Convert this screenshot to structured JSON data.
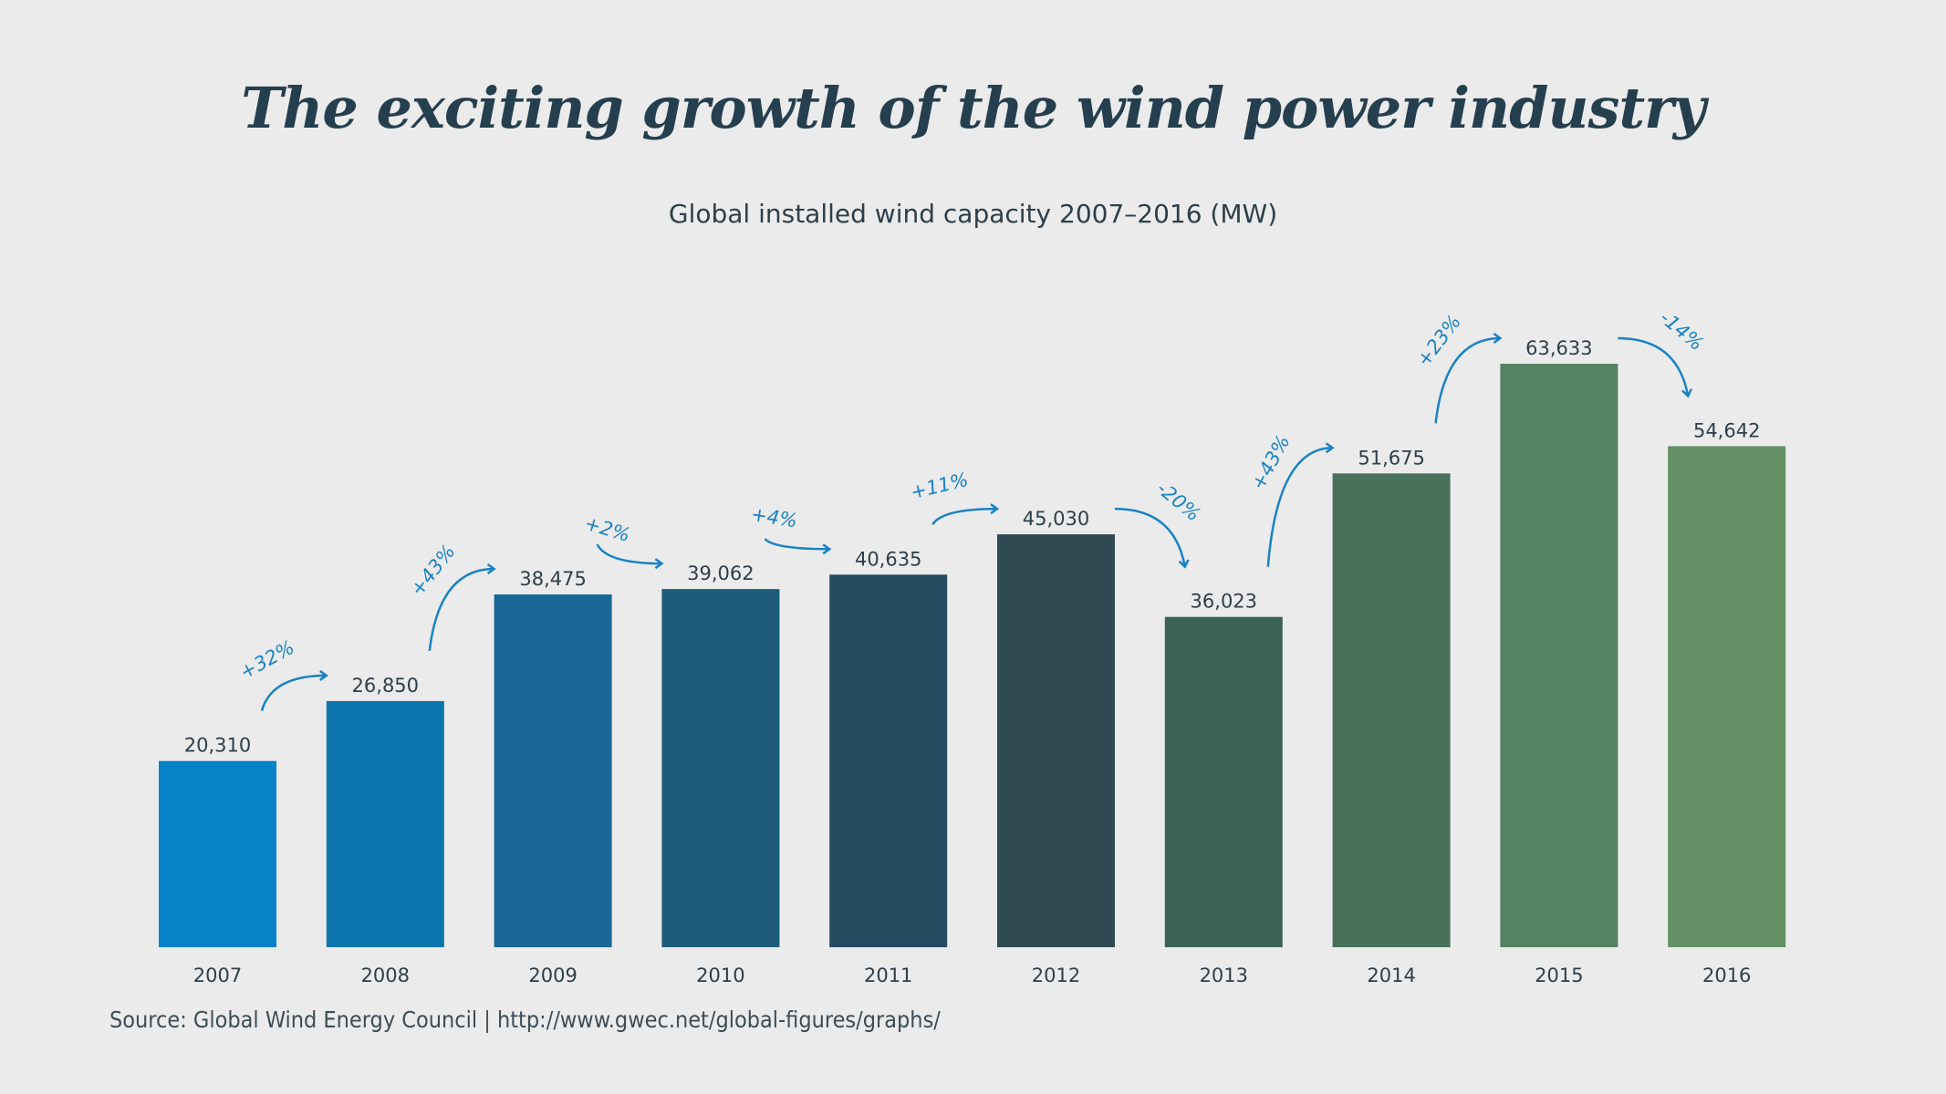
{
  "chart_data": {
    "type": "bar",
    "title": "The exciting growth of the wind power industry",
    "subtitle": "Global installed wind capacity 2007–2016 (MW)",
    "categories": [
      "2007",
      "2008",
      "2009",
      "2010",
      "2011",
      "2012",
      "2013",
      "2014",
      "2015",
      "2016"
    ],
    "values": [
      20310,
      26850,
      38475,
      39062,
      40635,
      45030,
      36023,
      51675,
      63633,
      54642
    ],
    "value_labels": [
      "20,310",
      "26,850",
      "38,475",
      "39,062",
      "40,635",
      "45,030",
      "36,023",
      "51,675",
      "63,633",
      "54,642"
    ],
    "changes": [
      "+32%",
      "+43%",
      "+2%",
      "+4%",
      "+11%",
      "-20%",
      "+43%",
      "+23%",
      "-14%"
    ],
    "colors": [
      "#0582c8",
      "#0d75ae",
      "#186794",
      "#1f5b7a",
      "#254b61",
      "#2f4a52",
      "#3c6157",
      "#48715c",
      "#558262",
      "#629064"
    ],
    "annotation_color": "#1a82c4",
    "ylim": [
      0,
      70000
    ],
    "grid": false,
    "y_axis_shown": false,
    "source": "Source: Global Wind Energy Council | http://www.gwec.net/global-figures/graphs/"
  }
}
